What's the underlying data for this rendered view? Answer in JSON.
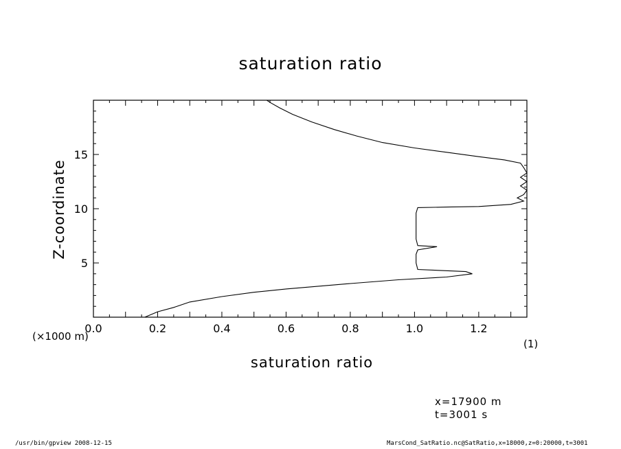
{
  "chart_data": {
    "type": "line",
    "title": "saturation ratio",
    "xlabel": "saturation ratio",
    "ylabel": "Z-coordinate",
    "x_unit_label": "(1)",
    "y_unit_label": "(×1000 m)",
    "xlim": [
      0.0,
      1.35
    ],
    "ylim": [
      0.0,
      20.0
    ],
    "x_ticks": [
      "0.0",
      "0.2",
      "0.4",
      "0.6",
      "0.8",
      "1.0",
      "1.2"
    ],
    "y_ticks": [
      "5",
      "10",
      "15"
    ],
    "grid": false,
    "series": [
      {
        "points": [
          [
            0.16,
            0.0
          ],
          [
            0.2,
            0.5
          ],
          [
            0.25,
            0.9
          ],
          [
            0.3,
            1.4
          ],
          [
            0.4,
            1.9
          ],
          [
            0.5,
            2.3
          ],
          [
            0.6,
            2.6
          ],
          [
            0.8,
            3.1
          ],
          [
            0.95,
            3.45
          ],
          [
            1.1,
            3.7
          ],
          [
            1.18,
            4.0
          ],
          [
            1.16,
            4.2
          ],
          [
            1.01,
            4.4
          ],
          [
            1.005,
            5.0
          ],
          [
            1.005,
            5.8
          ],
          [
            1.01,
            6.2
          ],
          [
            1.07,
            6.5
          ],
          [
            1.01,
            6.6
          ],
          [
            1.005,
            7.2
          ],
          [
            1.005,
            8.5
          ],
          [
            1.005,
            9.6
          ],
          [
            1.01,
            10.1
          ],
          [
            1.1,
            10.15
          ],
          [
            1.2,
            10.2
          ],
          [
            1.3,
            10.4
          ],
          [
            1.34,
            10.7
          ],
          [
            1.32,
            11.0
          ],
          [
            1.34,
            11.3
          ],
          [
            1.35,
            11.7
          ],
          [
            1.33,
            12.1
          ],
          [
            1.35,
            12.5
          ],
          [
            1.33,
            12.9
          ],
          [
            1.35,
            13.3
          ],
          [
            1.34,
            13.8
          ],
          [
            1.33,
            14.2
          ],
          [
            1.28,
            14.5
          ],
          [
            1.2,
            14.8
          ],
          [
            1.1,
            15.2
          ],
          [
            1.0,
            15.6
          ],
          [
            0.9,
            16.1
          ],
          [
            0.82,
            16.7
          ],
          [
            0.75,
            17.3
          ],
          [
            0.68,
            18.0
          ],
          [
            0.62,
            18.7
          ],
          [
            0.58,
            19.3
          ],
          [
            0.55,
            19.8
          ],
          [
            0.54,
            20.0
          ]
        ]
      }
    ]
  },
  "annotations": {
    "coord_x": "x=17900  m",
    "coord_t": "t=3001  s"
  },
  "footer": {
    "left": "/usr/bin/gpview   2008-12-15",
    "right": "MarsCond_SatRatio.nc@SatRatio,x=18000,z=0:20000,t=3001"
  }
}
